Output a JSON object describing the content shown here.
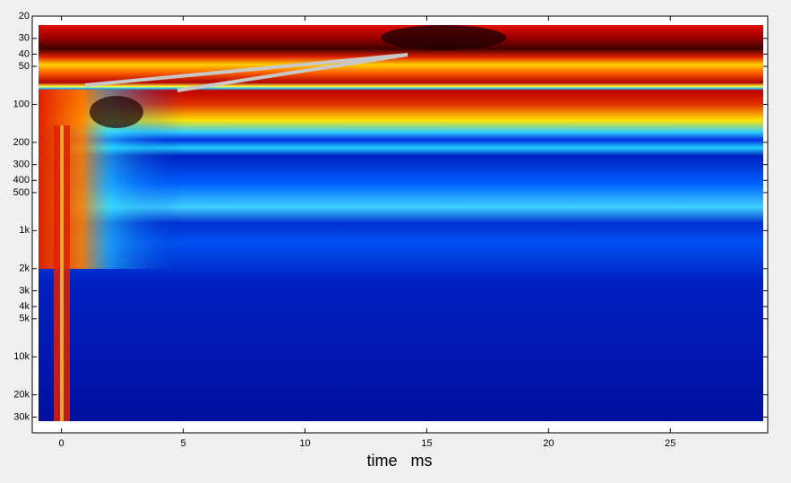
{
  "chart_data": {
    "type": "heatmap",
    "xlabel": "time   ms",
    "xlim": [
      -1.2,
      29
    ],
    "xticks": [
      0,
      5,
      10,
      15,
      20,
      25
    ],
    "ylim": [
      20,
      40000
    ],
    "ylog": true,
    "yreversed": true,
    "yticks": [
      20,
      30,
      40,
      50,
      100,
      200,
      300,
      400,
      500,
      {
        "value": 1000,
        "label": "1k"
      },
      {
        "value": 2000,
        "label": "2k"
      },
      {
        "value": 3000,
        "label": "3k"
      },
      {
        "value": 4000,
        "label": "4k"
      },
      {
        "value": 5000,
        "label": "5k"
      },
      {
        "value": 10000,
        "label": "10k"
      },
      {
        "value": 20000,
        "label": "20k"
      },
      {
        "value": 30000,
        "label": "30k"
      }
    ]
  }
}
